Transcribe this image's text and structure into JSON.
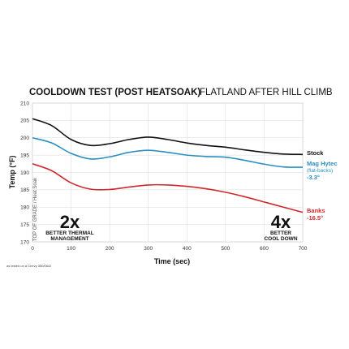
{
  "chart_data": {
    "type": "line",
    "title_bold": "COOLDOWN TEST (POST HEATSOAK)",
    "title_light": "FLATLAND AFTER HILL CLIMB",
    "xlabel": "Time (sec)",
    "ylabel": "Temp (°F)",
    "sidebar_label": "TOP OF GRADE / Heat Soak",
    "xlim": [
      0,
      700
    ],
    "ylim": [
      170,
      210
    ],
    "xticks": [
      0,
      100,
      200,
      300,
      400,
      500,
      600,
      700
    ],
    "yticks": [
      170,
      175,
      180,
      185,
      190,
      195,
      200,
      205,
      210
    ],
    "grid": true,
    "series": [
      {
        "name": "Stock",
        "sublabel": "",
        "delta": "",
        "color": "#111111",
        "x": [
          0,
          50,
          100,
          150,
          200,
          250,
          300,
          350,
          400,
          450,
          500,
          550,
          600,
          650,
          700
        ],
        "y": [
          205.5,
          203.5,
          199.5,
          197.8,
          198.3,
          199.5,
          200.2,
          199.5,
          198.5,
          197.8,
          197.3,
          196.5,
          195.8,
          195.3,
          195.2
        ]
      },
      {
        "name": "Mag Hytec",
        "sublabel": "(flat-backs)",
        "delta": "-3.3°",
        "color": "#2a8fc0",
        "x": [
          0,
          50,
          100,
          150,
          200,
          250,
          300,
          350,
          400,
          450,
          500,
          550,
          600,
          650,
          700
        ],
        "y": [
          200,
          198.5,
          195.5,
          193.9,
          194.5,
          195.8,
          196.4,
          195.8,
          195,
          194.6,
          194.4,
          193.5,
          192.4,
          191.6,
          191.5
        ]
      },
      {
        "name": "Banks",
        "sublabel": "",
        "delta": "-16.5°",
        "color": "#d0282d",
        "x": [
          0,
          50,
          100,
          150,
          200,
          250,
          300,
          350,
          400,
          450,
          500,
          550,
          600,
          650,
          700
        ],
        "y": [
          192.5,
          190.5,
          187,
          185.2,
          185.1,
          185.8,
          186.4,
          186.4,
          186,
          185.3,
          184.3,
          183,
          181.5,
          180,
          178.5
        ]
      }
    ],
    "annotations": [
      {
        "big": "2x",
        "line1": "BETTER THERMAL",
        "line2": "MANAGEMENT"
      },
      {
        "big": "4x",
        "line1": "BETTER",
        "line2": "COOL DOWN"
      }
    ],
    "footnote": "as tested on a Chevy 350/0642"
  }
}
